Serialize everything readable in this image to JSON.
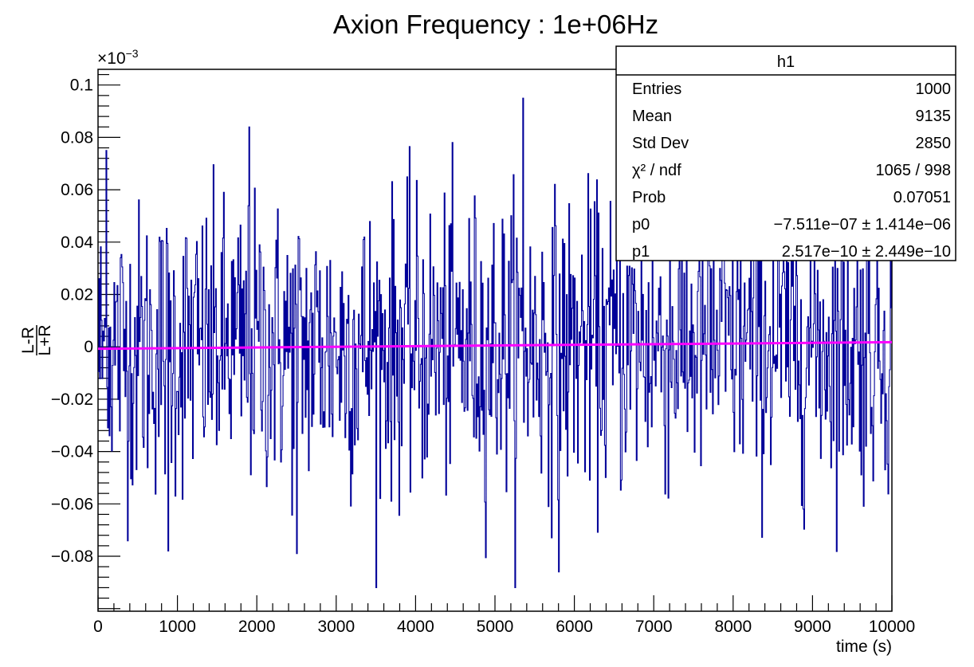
{
  "chart_data": {
    "type": "line",
    "title": "Axion Frequency : 1e+06Hz",
    "xlabel": "time (s)",
    "ylabel_numerator": "L-R",
    "ylabel_denominator": "L+R",
    "y_exponent_label": "×10",
    "y_exponent": "−3",
    "xlim": [
      0,
      10000
    ],
    "ylim": [
      -0.000101,
      0.000106
    ],
    "x_ticks": [
      0,
      1000,
      2000,
      3000,
      4000,
      5000,
      6000,
      7000,
      8000,
      9000,
      10000
    ],
    "x_tick_labels": [
      "0",
      "1000",
      "2000",
      "3000",
      "4000",
      "5000",
      "6000",
      "7000",
      "8000",
      "9000",
      "10000"
    ],
    "y_ticks": [
      -8e-05,
      -6e-05,
      -4e-05,
      -2e-05,
      0,
      2e-05,
      4e-05,
      6e-05,
      8e-05,
      0.0001
    ],
    "y_tick_labels": [
      "−0.08",
      "−0.06",
      "−0.04",
      "−0.02",
      "0",
      "0.02",
      "0.04",
      "0.06",
      "0.08",
      "0.1"
    ],
    "grid": false,
    "series": [
      {
        "entries": 1000,
        "x_min": 0,
        "x_max": 10000,
        "bin_width": 10,
        "approx_spread": 2.8e-05,
        "notable_values": [
          {
            "x": 100,
            "y": 7.5e-05
          },
          {
            "x": 1900,
            "y": 8.4e-05
          },
          {
            "x": 5350,
            "y": 9.5e-05
          },
          {
            "x": 5800,
            "y": -8.6e-05
          },
          {
            "x": 880,
            "y": -7.8e-05
          },
          {
            "x": 2500,
            "y": -7.9e-05
          }
        ],
        "color": "#000099"
      }
    ],
    "fit_line": {
      "p0": -7.511e-07,
      "p1": 2.517e-10,
      "color": "#ff00ff"
    },
    "stats_box": {
      "title": "h1",
      "rows": [
        {
          "label": "Entries",
          "value": "1000"
        },
        {
          "label": "Mean",
          "value": "9135"
        },
        {
          "label": "Std Dev",
          "value": "2850"
        },
        {
          "label": "χ² / ndf",
          "value": "1065 / 998"
        },
        {
          "label": "Prob",
          "value": "0.07051"
        },
        {
          "label": "p0",
          "value": "−7.511e−07 ± 1.414e−06"
        },
        {
          "label": "p1",
          "value": "2.517e−10 ± 2.449e−10"
        }
      ]
    }
  }
}
